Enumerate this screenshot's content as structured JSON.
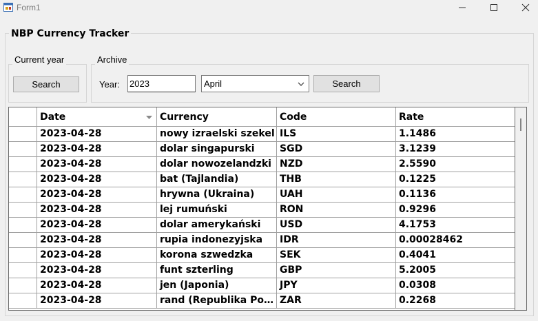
{
  "window": {
    "title": "Form1"
  },
  "form": {
    "heading": "NBP Currency Tracker"
  },
  "current_year": {
    "label": "Current year",
    "search_label": "Search"
  },
  "archive": {
    "label": "Archive",
    "year_label": "Year:",
    "year_value": "2023",
    "month_value": "April",
    "search_label": "Search"
  },
  "grid": {
    "columns": [
      "Date",
      "Currency",
      "Code",
      "Rate"
    ],
    "sorted_column": "Date",
    "rows": [
      [
        "2023-04-28",
        "nowy izraelski szekel",
        "ILS",
        "1.1486"
      ],
      [
        "2023-04-28",
        "dolar singapurski",
        "SGD",
        "3.1239"
      ],
      [
        "2023-04-28",
        "dolar nowozelandzki",
        "NZD",
        "2.5590"
      ],
      [
        "2023-04-28",
        "bat (Tajlandia)",
        "THB",
        "0.1225"
      ],
      [
        "2023-04-28",
        "hrywna (Ukraina)",
        "UAH",
        "0.1136"
      ],
      [
        "2023-04-28",
        "lej rumuński",
        "RON",
        "0.9296"
      ],
      [
        "2023-04-28",
        "dolar amerykański",
        "USD",
        "4.1753"
      ],
      [
        "2023-04-28",
        "rupia indonezyjska",
        "IDR",
        "0.00028462"
      ],
      [
        "2023-04-28",
        "korona szwedzka",
        "SEK",
        "0.4041"
      ],
      [
        "2023-04-28",
        "funt szterling",
        "GBP",
        "5.2005"
      ],
      [
        "2023-04-28",
        "jen (Japonia)",
        "JPY",
        "0.0308"
      ],
      [
        "2023-04-28",
        "rand (Republika Południowej Afryki)",
        "ZAR",
        "0.2268"
      ]
    ]
  }
}
